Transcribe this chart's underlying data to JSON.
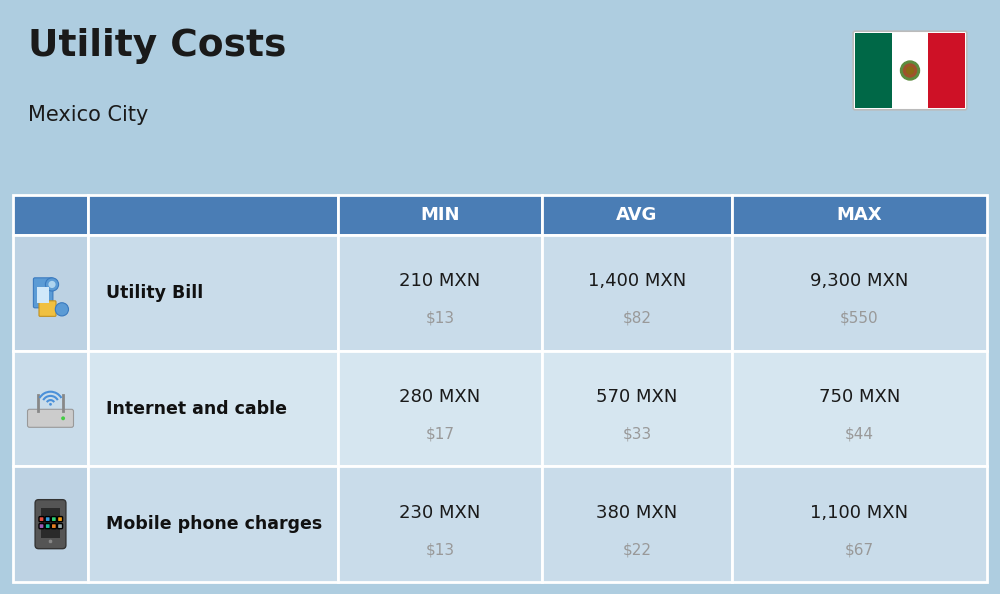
{
  "title": "Utility Costs",
  "subtitle": "Mexico City",
  "background_color": "#aecde0",
  "header_color": "#4a7db5",
  "header_text_color": "#ffffff",
  "row_color_1": "#c9dcea",
  "row_color_2": "#d6e6f0",
  "icon_col_color_1": "#bdd2e3",
  "icon_col_color_2": "#c9dcea",
  "text_color": "#1a1a1a",
  "sub_text_color": "#999999",
  "label_color": "#111111",
  "columns": [
    "MIN",
    "AVG",
    "MAX"
  ],
  "rows": [
    {
      "label": "Utility Bill",
      "values": [
        [
          "210 MXN",
          "$13"
        ],
        [
          "1,400 MXN",
          "$82"
        ],
        [
          "9,300 MXN",
          "$550"
        ]
      ]
    },
    {
      "label": "Internet and cable",
      "values": [
        [
          "280 MXN",
          "$17"
        ],
        [
          "570 MXN",
          "$33"
        ],
        [
          "750 MXN",
          "$44"
        ]
      ]
    },
    {
      "label": "Mobile phone charges",
      "values": [
        [
          "230 MXN",
          "$13"
        ],
        [
          "380 MXN",
          "$22"
        ],
        [
          "1,100 MXN",
          "$67"
        ]
      ]
    }
  ],
  "flag_green": "#006847",
  "flag_white": "#ffffff",
  "flag_red": "#ce1126",
  "figsize": [
    10.0,
    5.94
  ],
  "dpi": 100
}
